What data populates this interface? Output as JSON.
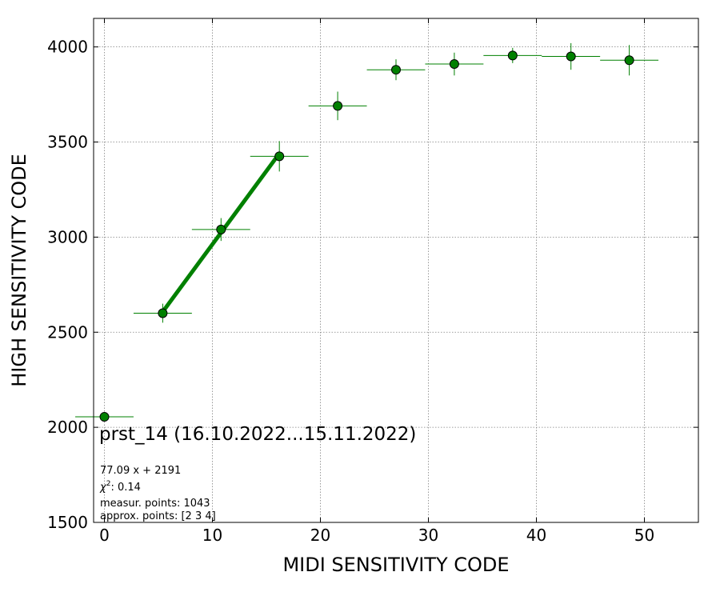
{
  "chart_data": {
    "type": "scatter",
    "xlabel": "MIDI SENSITIVITY CODE",
    "ylabel": "HIGH SENSITIVITY CODE",
    "xlim": [
      -1,
      55
    ],
    "ylim": [
      1500,
      4150
    ],
    "xticks": [
      0,
      10,
      20,
      30,
      40,
      50
    ],
    "yticks": [
      1500,
      2000,
      2500,
      3000,
      3500,
      4000
    ],
    "grid": true,
    "annotation_title": "prst_14 (16.10.2022...15.11.2022)",
    "fit_text": "77.09 x + 2191",
    "chi2_label": "χ",
    "chi2_sup": "2",
    "chi2_value": ": 0.14",
    "measur_points_text": "measur. points: 1043",
    "approx_points_text": "approx. points: [2 3 4]",
    "colors": {
      "marker": "#008000",
      "fit_line": "#008000",
      "grid": "#808080"
    },
    "points": [
      {
        "x": 0.0,
        "xerr": 2.7,
        "y": 2055,
        "yerr": 5
      },
      {
        "x": 5.4,
        "xerr": 2.7,
        "y": 2600,
        "yerr": 50
      },
      {
        "x": 10.8,
        "xerr": 2.7,
        "y": 3040,
        "yerr": 60
      },
      {
        "x": 16.2,
        "xerr": 2.7,
        "y": 3425,
        "yerr": 80
      },
      {
        "x": 21.6,
        "xerr": 2.7,
        "y": 3690,
        "yerr": 75
      },
      {
        "x": 27.0,
        "xerr": 2.7,
        "y": 3880,
        "yerr": 55
      },
      {
        "x": 32.4,
        "xerr": 2.7,
        "y": 3910,
        "yerr": 60
      },
      {
        "x": 37.8,
        "xerr": 2.7,
        "y": 3955,
        "yerr": 40
      },
      {
        "x": 43.2,
        "xerr": 2.7,
        "y": 3950,
        "yerr": 70
      },
      {
        "x": 48.6,
        "xerr": 2.7,
        "y": 3930,
        "yerr": 80
      }
    ],
    "fit": {
      "slope": 77.09,
      "intercept": 2191,
      "x_range": [
        5.4,
        16.2
      ]
    }
  }
}
